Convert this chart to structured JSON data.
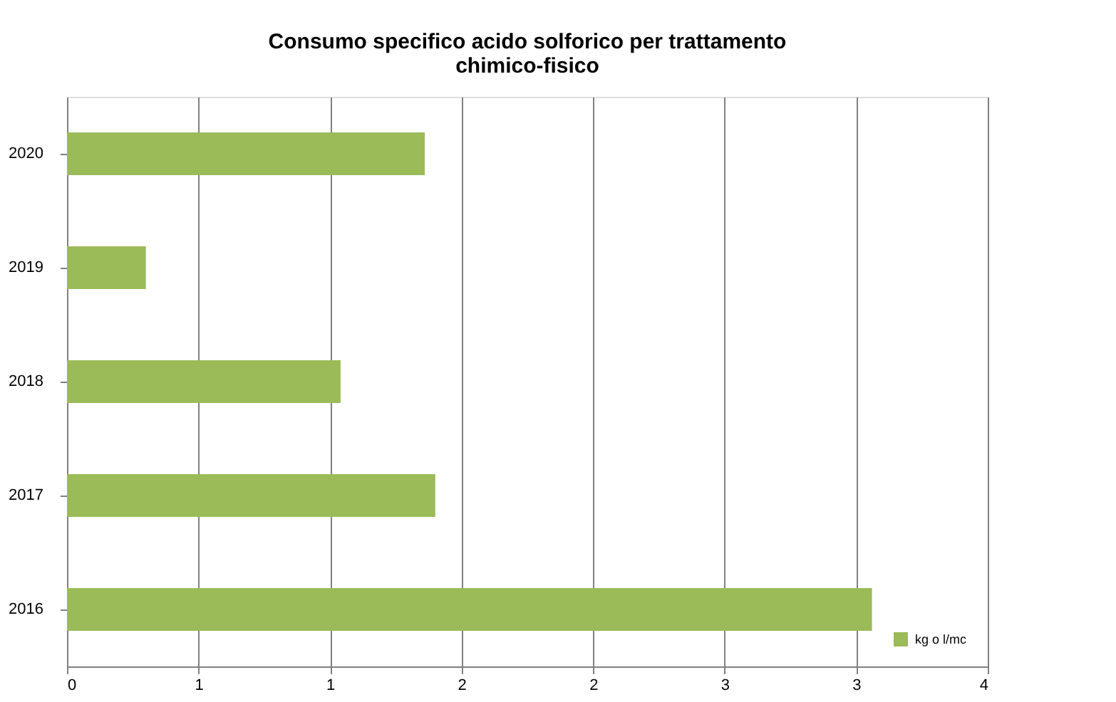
{
  "chart_data": {
    "type": "bar",
    "orientation": "horizontal",
    "title": [
      "Consumo specifico acido solforico per trattamento",
      "chimico-fisico"
    ],
    "categories": [
      "2020",
      "2019",
      "2018",
      "2017",
      "2016"
    ],
    "series": [
      {
        "name": "kg o l/mc",
        "color": "#9bbb59",
        "values": [
          1.36,
          0.3,
          1.04,
          1.4,
          3.06
        ]
      }
    ],
    "xlim": [
      0,
      3.5
    ],
    "xticks": [
      0,
      {
        "value": 0.5,
        "label": "1"
      },
      1,
      {
        "value": 1.5,
        "label": "2"
      },
      2,
      {
        "value": 2.5,
        "label": "3"
      },
      3,
      {
        "value": 3.5,
        "label": "4"
      }
    ],
    "grid": "x",
    "legend": "bottom right"
  }
}
